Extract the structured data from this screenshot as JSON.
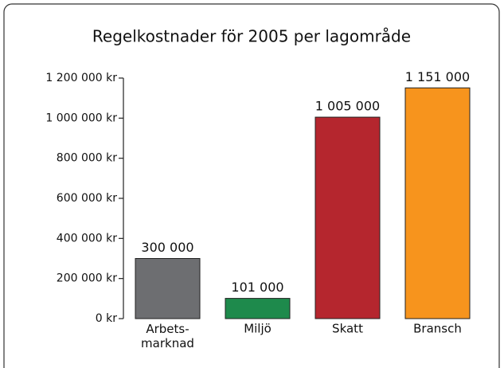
{
  "chart_data": {
    "type": "bar",
    "title": "Regelkostnader för 2005 per lagområde",
    "categories": [
      "Arbets-\nmarknad",
      "Miljö",
      "Skatt",
      "Bransch"
    ],
    "series": [
      {
        "name": "Regelkostnader",
        "colors": [
          "#6d6e71",
          "#1e8a4c",
          "#b5262e",
          "#f7941d"
        ],
        "values": [
          300000,
          101000,
          1005000,
          1151000
        ],
        "value_labels": [
          "300 000",
          "101 000",
          "1 005 000",
          "1 151 000"
        ]
      }
    ],
    "ylim": [
      0,
      1200000
    ],
    "yticks": [
      {
        "value": 0,
        "label": "0 kr"
      },
      {
        "value": 200000,
        "label": "200 000 kr"
      },
      {
        "value": 400000,
        "label": "400 000 kr"
      },
      {
        "value": 600000,
        "label": "600 000 kr"
      },
      {
        "value": 800000,
        "label": "800 000 kr"
      },
      {
        "value": 1000000,
        "label": "1 000 000 kr"
      },
      {
        "value": 1200000,
        "label": "1 200 000 kr"
      }
    ]
  }
}
